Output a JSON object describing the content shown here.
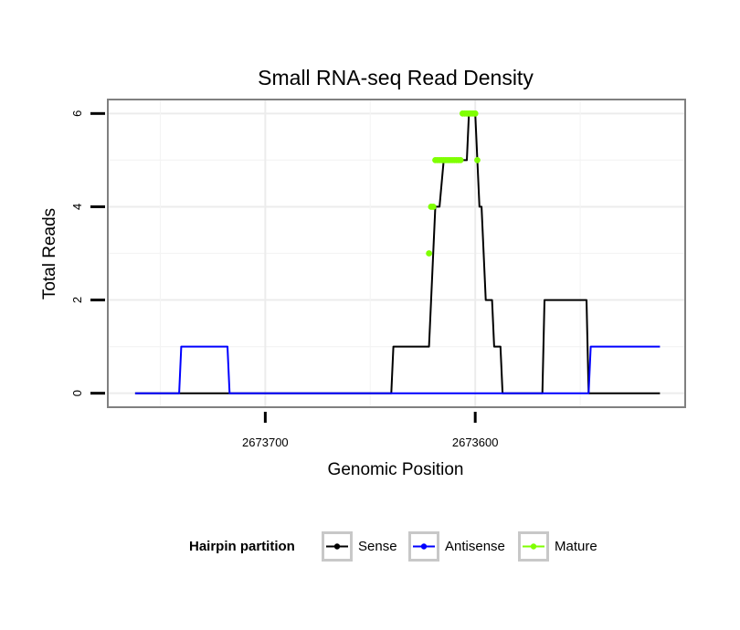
{
  "chart_data": {
    "type": "line",
    "title": "Small RNA-seq Read Density",
    "xlabel": "Genomic Position",
    "ylabel": "Total Reads",
    "x_reversed": true,
    "xlim": [
      2673775,
      2673500
    ],
    "ylim": [
      -0.3,
      6.3
    ],
    "x_ticks": [
      2673700,
      2673600
    ],
    "x_tick_labels": [
      "2673700",
      "2673600"
    ],
    "y_ticks": [
      0,
      2,
      4,
      6
    ],
    "y_tick_labels": [
      "0",
      "2",
      "4",
      "6"
    ],
    "grid": true,
    "legend": {
      "title": "Hairpin partition",
      "position": "bottom",
      "entries": [
        {
          "label": "Sense",
          "color": "#000000"
        },
        {
          "label": "Antisense",
          "color": "#0000ff"
        },
        {
          "label": "Mature",
          "color": "#7fff00"
        }
      ]
    },
    "series": [
      {
        "name": "Sense",
        "color": "#000000",
        "x": [
          2673762,
          2673640,
          2673639,
          2673630,
          2673629,
          2673622,
          2673621,
          2673620,
          2673619,
          2673618,
          2673617,
          2673615,
          2673614,
          2673613,
          2673612,
          2673611,
          2673610,
          2673609,
          2673608,
          2673604,
          2673603,
          2673601,
          2673600,
          2673599,
          2673598,
          2673597,
          2673596,
          2673595,
          2673594,
          2673593,
          2673592,
          2673591,
          2673590,
          2673589,
          2673588,
          2673587,
          2673586,
          2673585,
          2673584,
          2673583,
          2673582,
          2673581,
          2673580,
          2673579,
          2673578,
          2673577,
          2673576,
          2673575,
          2673574,
          2673569,
          2673568,
          2673567,
          2673566,
          2673565,
          2673563,
          2673562,
          2673561,
          2673560,
          2673559,
          2673558,
          2673557,
          2673556,
          2673555,
          2673554,
          2673553,
          2673552,
          2673551,
          2673550,
          2673549,
          2673548,
          2673547,
          2673546,
          2673545,
          2673544,
          2673543,
          2673542,
          2673541,
          2673540,
          2673539,
          2673538,
          2673537,
          2673536,
          2673535,
          2673534,
          2673533,
          2673532,
          2673531,
          2673530,
          2673529,
          2673528,
          2673527,
          2673526,
          2673525,
          2673524,
          2673523,
          2673522,
          2673521,
          2673520,
          2673519,
          2673518,
          2673517,
          2673516,
          2673515,
          2673514,
          2673513,
          2673512
        ],
        "y": [
          0,
          0,
          1,
          1,
          1,
          1,
          2,
          3,
          4,
          4,
          4,
          5,
          5,
          5,
          5,
          5,
          5,
          5,
          5,
          5,
          6,
          6,
          6,
          5,
          4,
          4,
          3,
          2,
          2,
          2,
          2,
          1,
          1,
          1,
          1,
          0,
          0,
          0,
          0,
          0,
          0,
          0,
          0,
          0,
          0,
          0,
          0,
          0,
          0,
          0,
          0,
          2,
          2,
          2,
          2,
          2,
          2,
          2,
          2,
          2,
          2,
          2,
          2,
          2,
          2,
          2,
          2,
          2,
          2,
          2,
          2,
          0,
          0,
          0,
          0,
          0,
          0,
          0,
          0,
          0,
          0,
          0,
          0,
          0,
          0,
          0,
          0,
          0,
          0,
          0,
          0,
          0,
          0,
          0,
          0,
          0,
          0,
          0,
          0,
          0,
          0,
          0,
          0,
          0,
          0,
          0
        ],
        "note": "steps"
      },
      {
        "name": "Antisense",
        "color": "#0000ff",
        "x": [
          2673762,
          2673741,
          2673740,
          2673718,
          2673717,
          2673546,
          2673545,
          2673512
        ],
        "y": [
          0,
          0,
          1,
          1,
          0,
          0,
          1,
          1
        ]
      },
      {
        "name": "Mature",
        "color": "#7fff00",
        "x": [
          2673622,
          2673621,
          2673620,
          2673619,
          2673618,
          2673617,
          2673616,
          2673615,
          2673614,
          2673613,
          2673612,
          2673611,
          2673610,
          2673609,
          2673608,
          2673607,
          2673606,
          2673605,
          2673604,
          2673603,
          2673602,
          2673601,
          2673600,
          2673599
        ],
        "y": [
          3,
          4,
          4,
          5,
          5,
          5,
          5,
          5,
          5,
          5,
          5,
          5,
          5,
          5,
          5,
          5,
          6,
          6,
          6,
          6,
          6,
          6,
          6,
          5
        ]
      }
    ]
  }
}
